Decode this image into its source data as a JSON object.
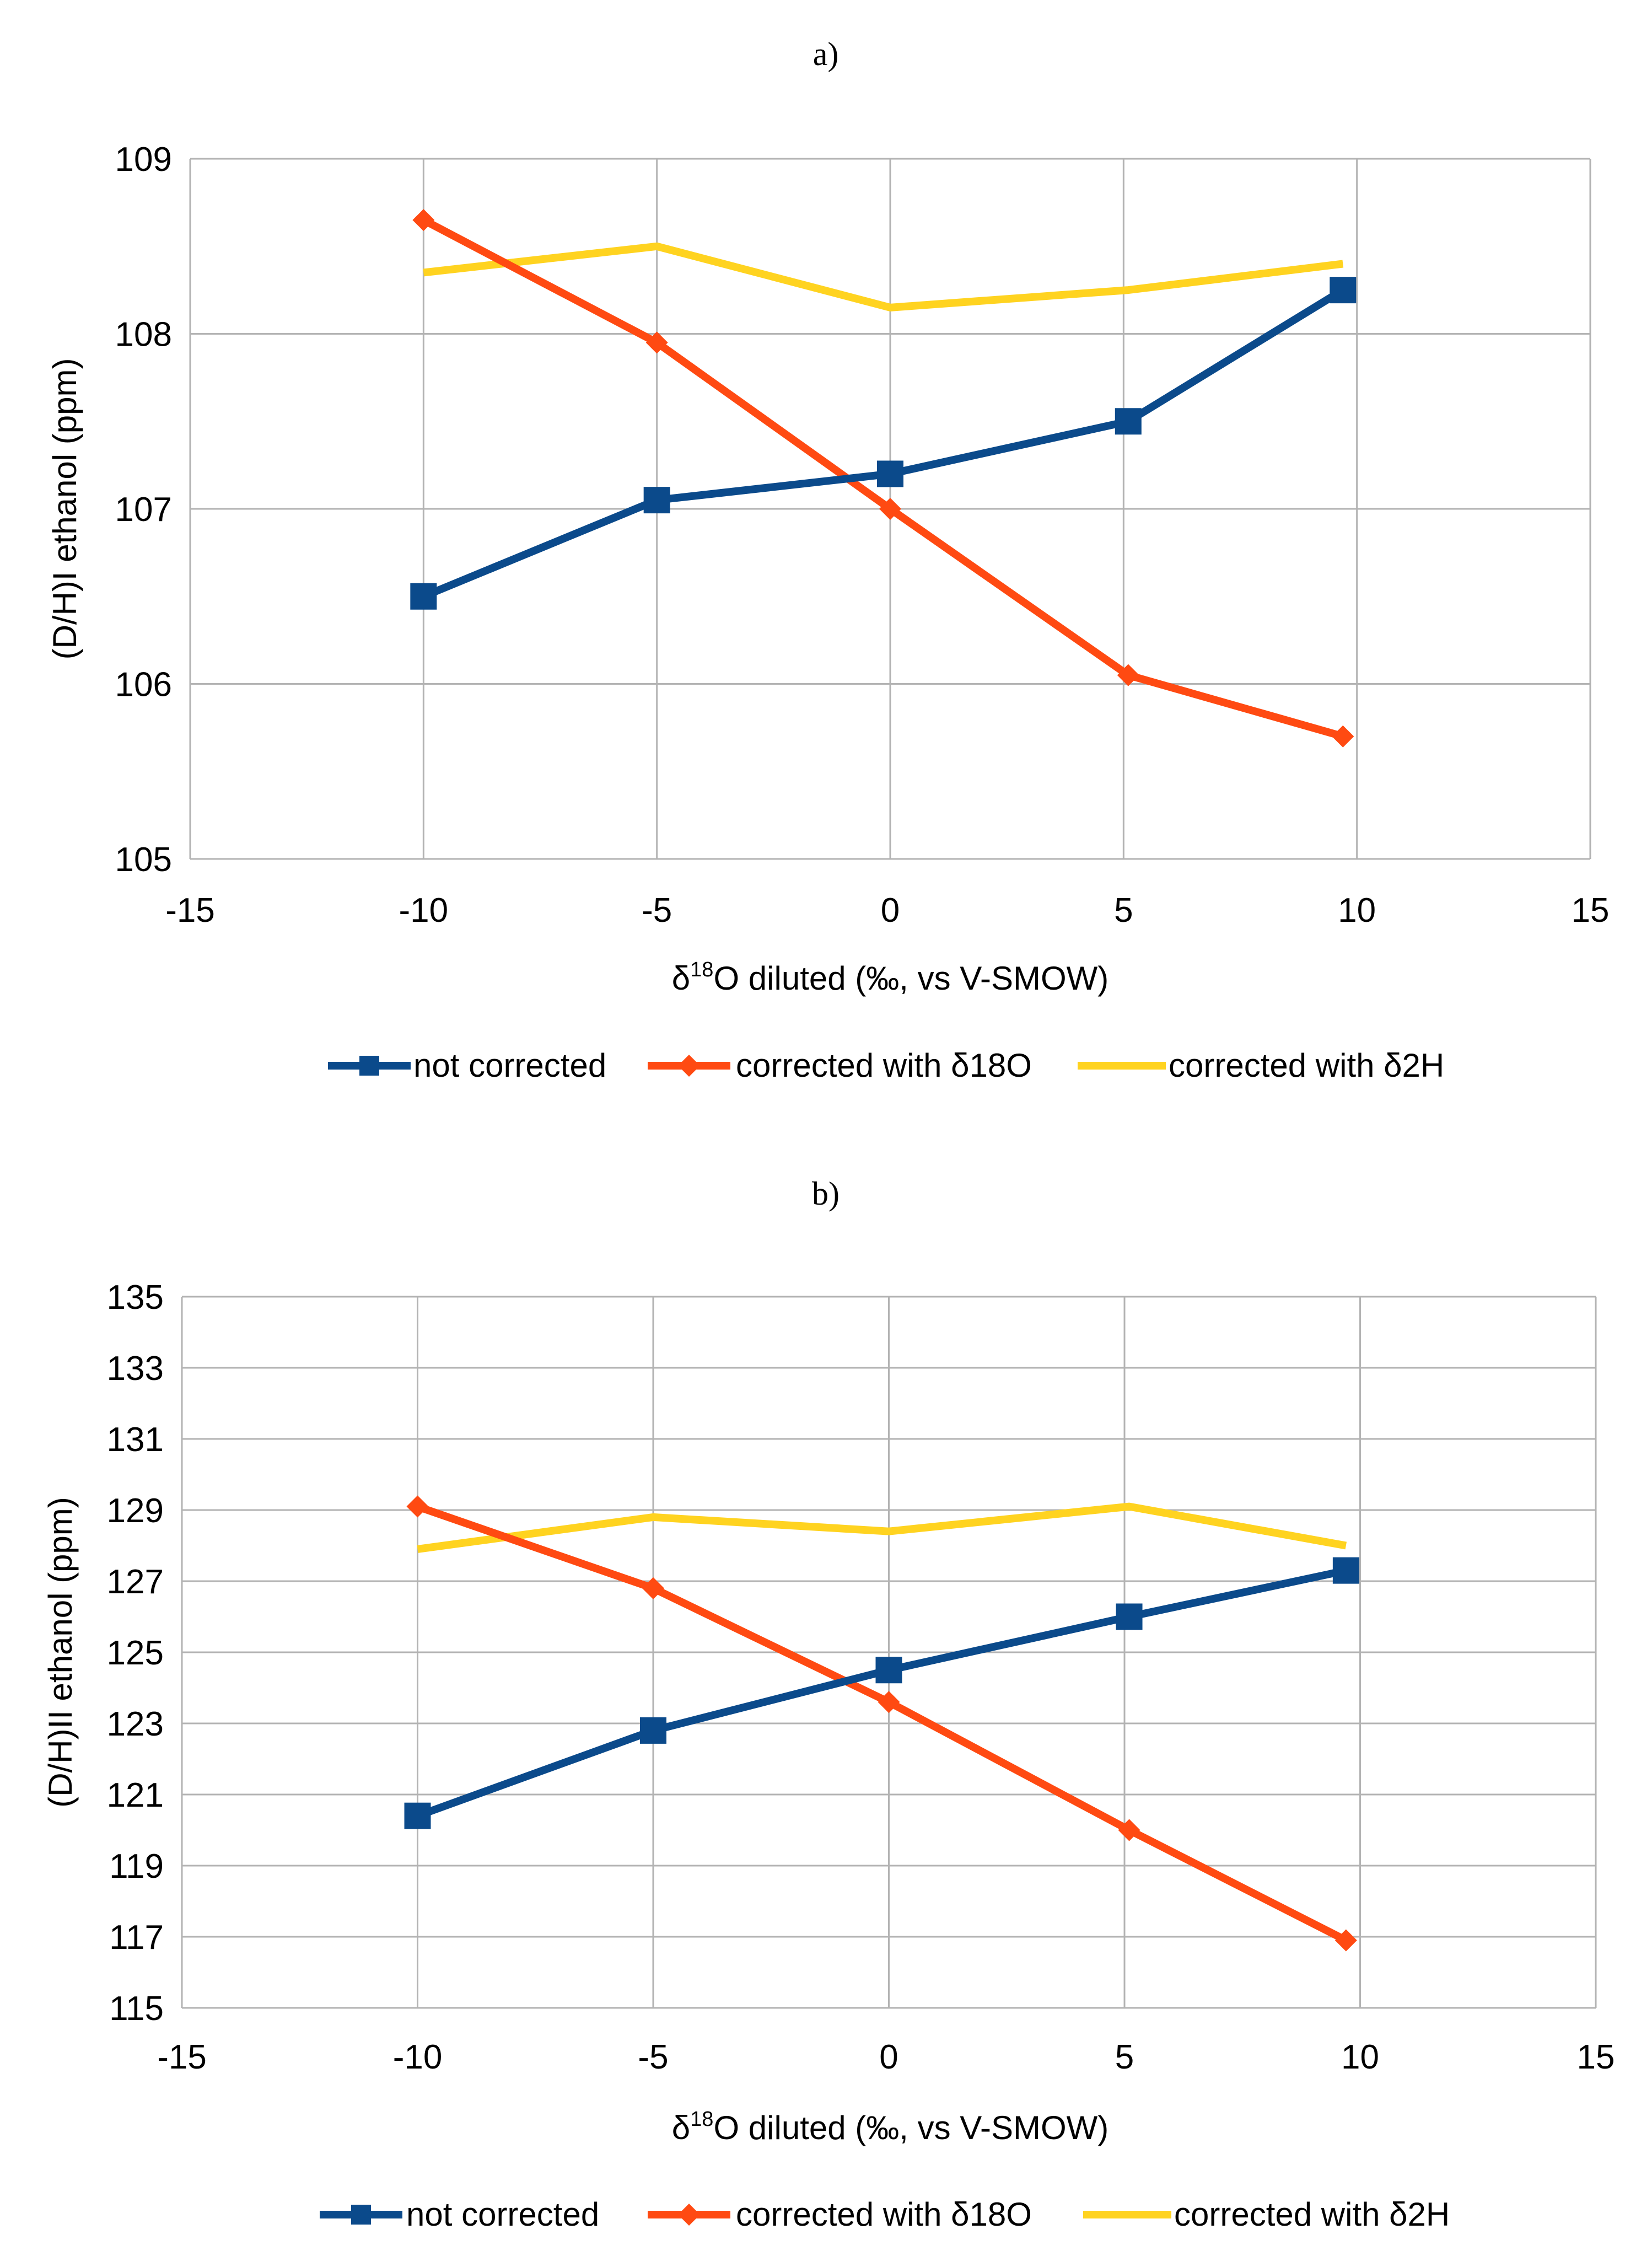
{
  "chart_data": [
    {
      "type": "line",
      "panel_label": "a)",
      "xlabel_delta": "δ",
      "xlabel_sup": "18",
      "xlabel_rest": "O diluted (‰,  vs V-SMOW)",
      "ylabel": "(D/H)I ethanol (ppm)",
      "xlim": [
        -15,
        15
      ],
      "ylim": [
        105,
        109
      ],
      "xticks": [
        -15,
        -10,
        -5,
        0,
        5,
        10,
        15
      ],
      "yticks": [
        105,
        106,
        107,
        108,
        109
      ],
      "grid": true,
      "legend_position": "bottom",
      "series": [
        {
          "name": "not corrected",
          "color": "#0b4a8b",
          "marker": "square",
          "x": [
            -10,
            -5,
            0,
            5.1,
            9.7
          ],
          "y": [
            106.5,
            107.05,
            107.2,
            107.5,
            108.25
          ]
        },
        {
          "name": "corrected with  δ18O",
          "color": "#ff4a12",
          "marker": "diamond",
          "x": [
            -10,
            -5,
            0,
            5.1,
            9.7
          ],
          "y": [
            108.65,
            107.95,
            107.0,
            106.05,
            105.7
          ]
        },
        {
          "name": "corrected with  δ2H",
          "color": "#ffd320",
          "marker": "none",
          "x": [
            -10,
            -5,
            0,
            5.1,
            9.7
          ],
          "y": [
            108.35,
            108.5,
            108.15,
            108.25,
            108.4
          ]
        }
      ]
    },
    {
      "type": "line",
      "panel_label": "b)",
      "xlabel_delta": "δ",
      "xlabel_sup": "18",
      "xlabel_rest": "O diluted (‰,  vs V-SMOW)",
      "ylabel": "(D/H)II ethanol (ppm)",
      "xlim": [
        -15,
        15
      ],
      "ylim": [
        115,
        135
      ],
      "xticks": [
        -15,
        -10,
        -5,
        0,
        5,
        10,
        15
      ],
      "yticks": [
        115,
        117,
        119,
        121,
        123,
        125,
        127,
        129,
        131,
        133,
        135
      ],
      "grid": true,
      "legend_position": "bottom",
      "series": [
        {
          "name": "not corrected",
          "color": "#0b4a8b",
          "marker": "square",
          "x": [
            -10,
            -5,
            0,
            5.1,
            9.7
          ],
          "y": [
            120.4,
            122.8,
            124.5,
            126.0,
            127.3
          ]
        },
        {
          "name": "corrected with  δ18O",
          "color": "#ff4a12",
          "marker": "diamond",
          "x": [
            -10,
            -5,
            0,
            5.1,
            9.7
          ],
          "y": [
            129.1,
            126.8,
            123.6,
            120.0,
            116.9
          ]
        },
        {
          "name": "corrected with  δ2H",
          "color": "#ffd320",
          "marker": "none",
          "x": [
            -10,
            -5,
            0,
            5.1,
            9.7
          ],
          "y": [
            127.9,
            128.8,
            128.4,
            129.1,
            128.0
          ]
        }
      ]
    }
  ]
}
